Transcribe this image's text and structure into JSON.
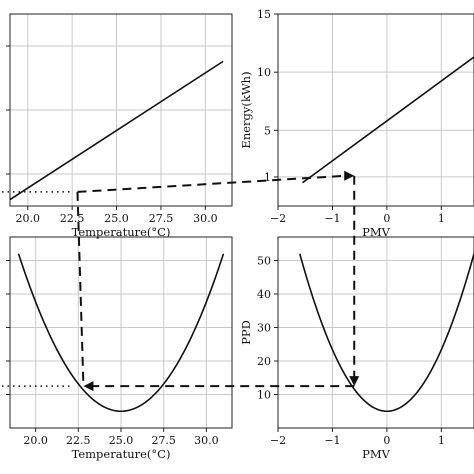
{
  "chart_data": [
    {
      "type": "line",
      "xlabel": "Temperature(°C)",
      "ylabel": "",
      "xlim": [
        19,
        31.5
      ],
      "ylim": [
        0,
        15
      ],
      "xticks": [
        "20.0",
        "22.5",
        "25.0",
        "27.5",
        "30.0"
      ],
      "yticks": [],
      "grid": true,
      "series": [
        {
          "x": [
            19.0,
            31.0
          ],
          "y": [
            0.5,
            11.3
          ]
        }
      ]
    },
    {
      "type": "line",
      "xlabel": "PMV",
      "ylabel": "Energy(kWh)",
      "xlim": [
        -2,
        1.6
      ],
      "ylim": [
        -1.5,
        15
      ],
      "xticks": [
        "−2",
        "−1",
        "0",
        "1"
      ],
      "yticks": [
        "1",
        "5",
        "10",
        "15"
      ],
      "grid": true,
      "series": [
        {
          "x": [
            -1.55,
            1.6
          ],
          "y": [
            0.5,
            11.3
          ]
        }
      ]
    },
    {
      "type": "line",
      "xlabel": "Temperature(°C)",
      "ylabel": "",
      "xlim": [
        18.5,
        31.5
      ],
      "ylim": [
        0,
        57
      ],
      "xticks": [
        "20.0",
        "22.5",
        "25.0",
        "27.5",
        "30.0"
      ],
      "yticks": [],
      "grid": true,
      "series": [
        {
          "function": "parabola",
          "vertex_x": 25.0,
          "vertex_y": 5.0,
          "x_range": [
            19.0,
            31.0
          ],
          "y_at_ends": 52.0
        }
      ]
    },
    {
      "type": "line",
      "xlabel": "PMV",
      "ylabel": "PPD",
      "xlim": [
        -2,
        1.6
      ],
      "ylim": [
        0,
        57
      ],
      "xticks": [
        "−2",
        "−1",
        "0",
        "1"
      ],
      "yticks": [
        "10",
        "20",
        "30",
        "40",
        "50"
      ],
      "grid": true,
      "series": [
        {
          "function": "parabola",
          "vertex_x": 0.0,
          "vertex_y": 5.0,
          "x_range": [
            -1.6,
            1.6
          ],
          "y_at_ends": 52.0
        }
      ]
    }
  ],
  "annotations": {
    "temperature_point": 22.8,
    "pmv_point": -0.6,
    "energy_point": 1.1,
    "ppd_point": 12.5
  }
}
